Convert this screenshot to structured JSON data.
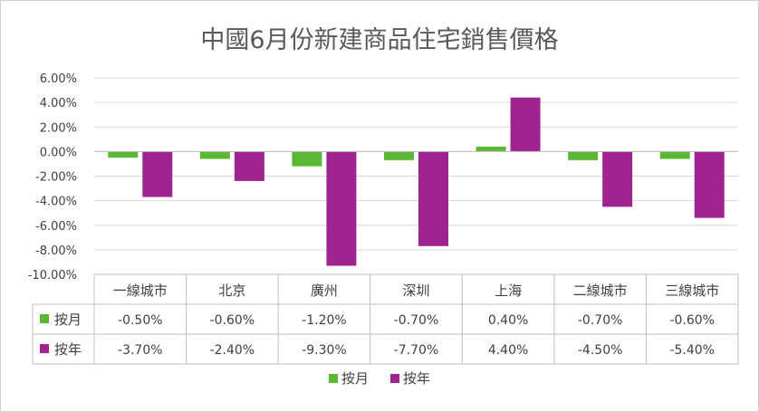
{
  "chart_data": {
    "type": "bar",
    "title": "中國6月份新建商品住宅銷售價格",
    "categories": [
      "一線城市",
      "北京",
      "廣州",
      "深圳",
      "上海",
      "二線城市",
      "三線城市"
    ],
    "series": [
      {
        "name": "按月",
        "color": "#5bb834",
        "values": [
          -0.5,
          -0.6,
          -1.2,
          -0.7,
          0.4,
          -0.7,
          -0.6
        ],
        "labels": [
          "-0.50%",
          "-0.60%",
          "-1.20%",
          "-0.70%",
          "0.40%",
          "-0.70%",
          "-0.60%"
        ]
      },
      {
        "name": "按年",
        "color": "#a0248f",
        "values": [
          -3.7,
          -2.4,
          -9.3,
          -7.7,
          4.4,
          -4.5,
          -5.4
        ],
        "labels": [
          "-3.70%",
          "-2.40%",
          "-9.30%",
          "-7.70%",
          "4.40%",
          "-4.50%",
          "-5.40%"
        ]
      }
    ],
    "ylim": [
      -10,
      6
    ],
    "yticks": [
      6,
      4,
      2,
      0,
      -2,
      -4,
      -6,
      -8,
      -10
    ],
    "ytick_labels": [
      "6.00%",
      "4.00%",
      "2.00%",
      "0.00%",
      "-2.00%",
      "-4.00%",
      "-6.00%",
      "-8.00%",
      "-10.00%"
    ],
    "grid": true,
    "legend": "bottom",
    "data_table": true
  }
}
